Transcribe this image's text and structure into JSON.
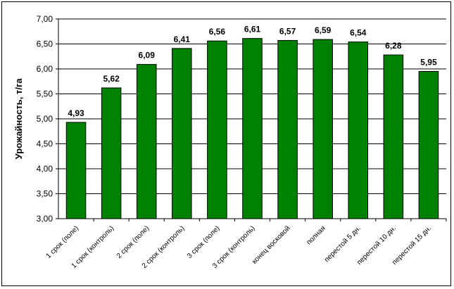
{
  "chart_data": {
    "type": "bar",
    "title": "",
    "xlabel": "",
    "ylabel": "Урожайность, т/га",
    "ylim": [
      3.0,
      7.0
    ],
    "ytick_step": 0.5,
    "ytick_labels": [
      "3,00",
      "3,50",
      "4,00",
      "4,50",
      "5,00",
      "5,50",
      "6,00",
      "6,50",
      "7,00"
    ],
    "grid": true,
    "legend": "none",
    "categories": [
      "1 срок (поле)",
      "1 срок (контроль)",
      "2 срок (поле)",
      "2 срок (контроль)",
      "3 срок (поле)",
      "3 срок (контроль)",
      "конец восковой",
      "полная",
      "перестой 5 дн.",
      "перестой 10 дн.",
      "перестой 15 дн."
    ],
    "values": [
      4.93,
      5.62,
      6.09,
      6.41,
      6.56,
      6.61,
      6.57,
      6.59,
      6.54,
      6.28,
      5.95
    ],
    "data_labels": [
      "4,93",
      "5,62",
      "6,09",
      "6,41",
      "6,56",
      "6,61",
      "6,57",
      "6,59",
      "6,54",
      "6,28",
      "5,95"
    ],
    "bar_color": "#008000",
    "bar_edge_color": "#000000"
  }
}
